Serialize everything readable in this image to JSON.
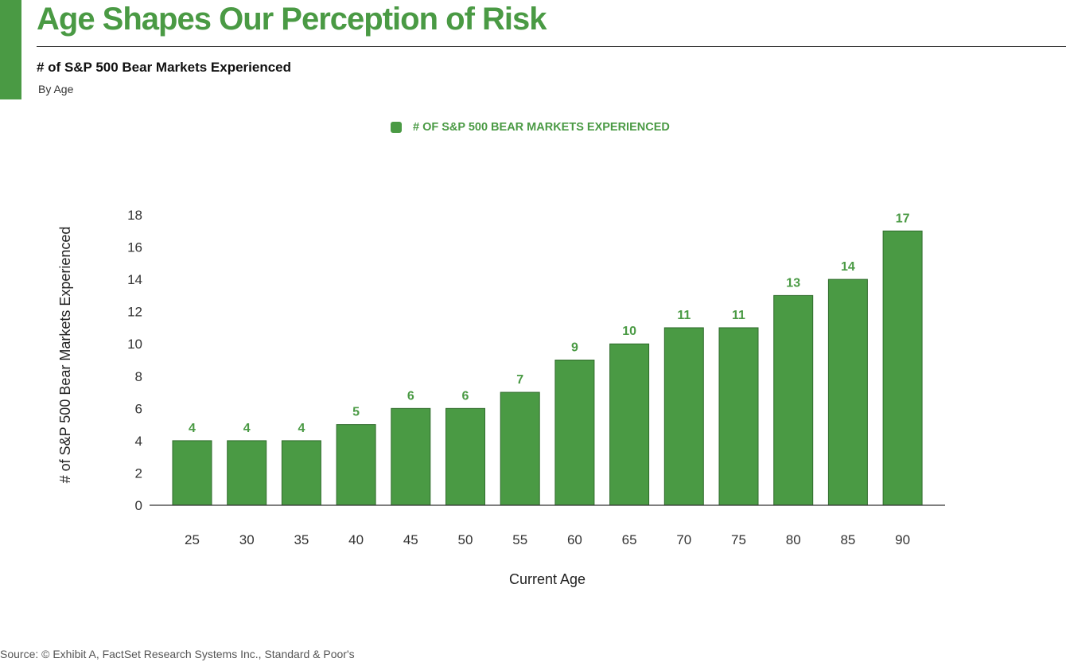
{
  "header": {
    "title": "Age Shapes Our Perception of Risk",
    "subtitle": "# of S&P 500 Bear Markets Experienced",
    "subsubtitle": "By Age"
  },
  "legend": {
    "label": "# OF S&P 500 BEAR MARKETS EXPERIENCED"
  },
  "footer": {
    "source": "Source: © Exhibit A, FactSet Research Systems Inc., Standard & Poor's"
  },
  "colors": {
    "accent": "#4a9a44",
    "bar": "#4a9a44",
    "axis": "#333333"
  },
  "chart_data": {
    "type": "bar",
    "categories": [
      "25",
      "30",
      "35",
      "40",
      "45",
      "50",
      "55",
      "60",
      "65",
      "70",
      "75",
      "80",
      "85",
      "90"
    ],
    "series": [
      {
        "name": "# OF S&P 500 BEAR MARKETS EXPERIENCED",
        "values": [
          4,
          4,
          4,
          5,
          6,
          6,
          7,
          9,
          10,
          11,
          11,
          13,
          14,
          17
        ]
      }
    ],
    "xlabel": "Current Age",
    "ylabel": "# of S&P 500 Bear Markets Experienced",
    "ylim": [
      0,
      18
    ],
    "yticks": [
      0,
      2,
      4,
      6,
      8,
      10,
      12,
      14,
      16,
      18
    ],
    "grid": false,
    "legend_position": "top-center",
    "data_labels": true
  }
}
